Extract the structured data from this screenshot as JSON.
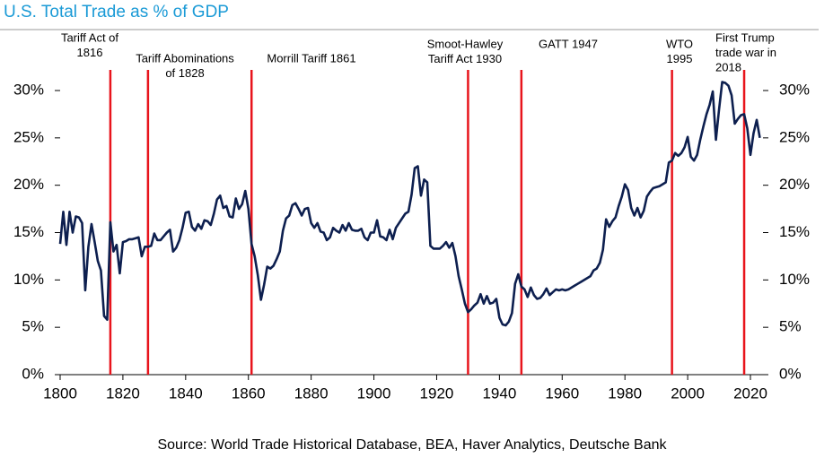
{
  "chart_data": {
    "type": "line",
    "title": "U.S. Total Trade as % of GDP",
    "source": "Source: World Trade Historical Database, BEA, Haver Analytics, Deutsche Bank",
    "color": "#0d1f4f",
    "marker_color": "#e8141c",
    "grid": false,
    "xlim": [
      1800,
      2024
    ],
    "xticks": [
      1800,
      1820,
      1840,
      1860,
      1880,
      1900,
      1920,
      1940,
      1960,
      1980,
      2000,
      2020
    ],
    "ylim": [
      0,
      36
    ],
    "yticks": [
      {
        "value": 0,
        "label": "0%"
      },
      {
        "value": 5,
        "label": "5%"
      },
      {
        "value": 10,
        "label": "10%"
      },
      {
        "value": 15,
        "label": "15%"
      },
      {
        "value": 20,
        "label": "20%"
      },
      {
        "value": 25,
        "label": "25%"
      },
      {
        "value": 30,
        "label": "30%"
      }
    ],
    "y2lim": [
      0,
      36
    ],
    "y2ticks": [
      {
        "value": 0,
        "label": "0%"
      },
      {
        "value": 5,
        "label": "5%"
      },
      {
        "value": 10,
        "label": "10%"
      },
      {
        "value": 15,
        "label": "15%"
      },
      {
        "value": 20,
        "label": "20%"
      },
      {
        "value": 25,
        "label": "25%"
      },
      {
        "value": 30,
        "label": "30%"
      }
    ],
    "annotations": [
      {
        "x": 1816,
        "text": [
          "Tariff Act of",
          "1816"
        ]
      },
      {
        "x": 1828,
        "text": [
          "Tariff Abominations",
          "of 1828"
        ]
      },
      {
        "x": 1861,
        "text": [
          "Morrill Tariff 1861"
        ]
      },
      {
        "x": 1930,
        "text": [
          "Smoot-Hawley",
          "Tariff Act 1930"
        ]
      },
      {
        "x": 1947,
        "text": [
          "GATT 1947"
        ]
      },
      {
        "x": 1995,
        "text": [
          "WTO",
          "1995"
        ]
      },
      {
        "x": 2018,
        "text": [
          "First Trump",
          "trade war in",
          "2018"
        ]
      }
    ],
    "x": [
      1800,
      1801,
      1802,
      1803,
      1804,
      1805,
      1806,
      1807,
      1808,
      1809,
      1810,
      1811,
      1812,
      1813,
      1814,
      1815,
      1816,
      1817,
      1818,
      1819,
      1820,
      1821,
      1822,
      1823,
      1824,
      1825,
      1826,
      1827,
      1828,
      1829,
      1830,
      1831,
      1832,
      1833,
      1834,
      1835,
      1836,
      1837,
      1838,
      1839,
      1840,
      1841,
      1842,
      1843,
      1844,
      1845,
      1846,
      1847,
      1848,
      1849,
      1850,
      1851,
      1852,
      1853,
      1854,
      1855,
      1856,
      1857,
      1858,
      1859,
      1860,
      1861,
      1862,
      1863,
      1864,
      1865,
      1866,
      1867,
      1868,
      1869,
      1870,
      1871,
      1872,
      1873,
      1874,
      1875,
      1876,
      1877,
      1878,
      1879,
      1880,
      1881,
      1882,
      1883,
      1884,
      1885,
      1886,
      1887,
      1888,
      1889,
      1890,
      1891,
      1892,
      1893,
      1894,
      1895,
      1896,
      1897,
      1898,
      1899,
      1900,
      1901,
      1902,
      1903,
      1904,
      1905,
      1906,
      1907,
      1908,
      1909,
      1910,
      1911,
      1912,
      1913,
      1914,
      1915,
      1916,
      1917,
      1918,
      1919,
      1920,
      1921,
      1922,
      1923,
      1924,
      1925,
      1926,
      1927,
      1928,
      1929,
      1930,
      1931,
      1932,
      1933,
      1934,
      1935,
      1936,
      1937,
      1938,
      1939,
      1940,
      1941,
      1942,
      1943,
      1944,
      1945,
      1946,
      1947,
      1948,
      1949,
      1950,
      1951,
      1952,
      1953,
      1954,
      1955,
      1956,
      1957,
      1958,
      1959,
      1960,
      1961,
      1962,
      1963,
      1964,
      1965,
      1966,
      1967,
      1968,
      1969,
      1970,
      1971,
      1972,
      1973,
      1974,
      1975,
      1976,
      1977,
      1978,
      1979,
      1980,
      1981,
      1982,
      1983,
      1984,
      1985,
      1986,
      1987,
      1988,
      1989,
      1990,
      1991,
      1992,
      1993,
      1994,
      1995,
      1996,
      1997,
      1998,
      1999,
      2000,
      2001,
      2002,
      2003,
      2004,
      2005,
      2006,
      2007,
      2008,
      2009,
      2010,
      2011,
      2012,
      2013,
      2014,
      2015,
      2016,
      2017,
      2018,
      2019,
      2020,
      2021,
      2022,
      2023
    ],
    "values": [
      13.8,
      17.2,
      13.7,
      17.2,
      15.0,
      16.7,
      16.6,
      16.0,
      8.9,
      13.5,
      15.9,
      14.0,
      12.0,
      11.0,
      6.2,
      5.8,
      16.1,
      13.0,
      13.7,
      10.7,
      14.0,
      14.1,
      14.3,
      14.3,
      14.4,
      14.5,
      12.5,
      13.5,
      13.5,
      13.6,
      14.9,
      14.2,
      14.2,
      14.6,
      15.0,
      15.3,
      13.0,
      13.4,
      14.2,
      15.5,
      17.1,
      17.2,
      15.6,
      15.2,
      15.9,
      15.4,
      16.3,
      16.2,
      15.8,
      17.0,
      18.5,
      18.9,
      17.6,
      17.8,
      16.7,
      16.6,
      18.6,
      17.5,
      18.0,
      19.4,
      17.5,
      13.8,
      12.5,
      10.5,
      7.9,
      9.5,
      11.4,
      11.2,
      11.5,
      12.2,
      13.0,
      15.2,
      16.5,
      16.8,
      17.9,
      18.1,
      17.5,
      16.8,
      17.5,
      17.6,
      16.0,
      15.5,
      16.0,
      15.1,
      15.0,
      14.2,
      14.5,
      15.5,
      15.2,
      15.0,
      15.8,
      15.2,
      16.0,
      15.3,
      15.2,
      15.2,
      15.4,
      14.5,
      14.2,
      15.0,
      15.0,
      16.3,
      14.6,
      14.5,
      14.2,
      15.3,
      14.3,
      15.5,
      16.0,
      16.5,
      17.0,
      17.2,
      19.0,
      21.8,
      22.0,
      18.9,
      20.6,
      20.3,
      13.6,
      13.3,
      13.3,
      13.3,
      13.6,
      14.0,
      13.4,
      13.9,
      12.5,
      10.4,
      9.0,
      7.5,
      6.6,
      6.9,
      7.3,
      7.6,
      8.5,
      7.5,
      8.3,
      7.5,
      7.6,
      8.0,
      6.0,
      5.3,
      5.2,
      5.6,
      6.5,
      9.6,
      10.6,
      9.3,
      9.0,
      8.2,
      9.2,
      8.4,
      8.0,
      8.1,
      8.5,
      9.1,
      8.4,
      8.7,
      9.0,
      8.9,
      9.0,
      8.9,
      9.0,
      9.2,
      9.4,
      9.6,
      9.8,
      10.0,
      10.2,
      10.4,
      11.0,
      11.2,
      11.8,
      13.2,
      16.4,
      15.6,
      16.2,
      16.6,
      17.8,
      18.8,
      20.1,
      19.5,
      17.6,
      16.8,
      17.6,
      16.6,
      17.3,
      18.8,
      19.3,
      19.7,
      19.8,
      19.9,
      20.1,
      20.3,
      22.4,
      22.6,
      23.4,
      23.1,
      23.4,
      24.0,
      25.1,
      23.0,
      22.6,
      23.2,
      24.8,
      26.2,
      27.5,
      28.5,
      29.9,
      24.8,
      28.0,
      30.9,
      30.8,
      30.5,
      29.5,
      26.5,
      27.0,
      27.4,
      27.5,
      26.0,
      23.2,
      25.5,
      26.9,
      25.0
    ]
  }
}
